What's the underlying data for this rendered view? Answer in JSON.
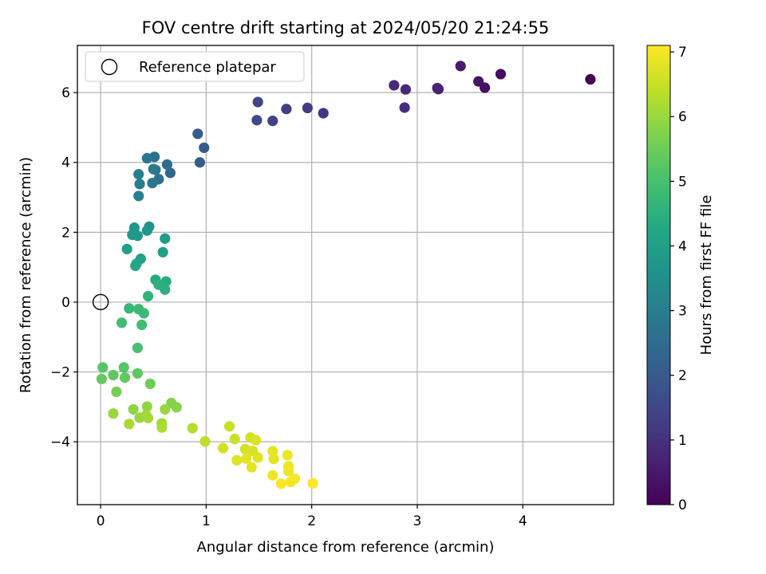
{
  "chart_data": {
    "type": "scatter",
    "title": "FOV centre drift starting at 2024/05/20 21:24:55",
    "xlabel": "Angular distance from reference (arcmin)",
    "ylabel": "Rotation from reference (arcmin)",
    "xlim": [
      -0.22,
      4.86
    ],
    "ylim": [
      -5.8,
      7.35
    ],
    "xticks": [
      0,
      1,
      2,
      3,
      4
    ],
    "yticks": [
      -4,
      -2,
      0,
      2,
      4,
      6
    ],
    "grid": true,
    "legend": {
      "placement": "top-left",
      "label": "Reference platepar"
    },
    "reference_point": {
      "x": 0,
      "y": 0
    },
    "colorbar": {
      "label": "Hours from first FF file",
      "range": [
        0,
        7.1
      ],
      "ticks": [
        0,
        1,
        2,
        3,
        4,
        5,
        6,
        7
      ],
      "colormap": "viridis"
    },
    "points": [
      {
        "x": 4.64,
        "y": 6.38,
        "c": 0.0
      },
      {
        "x": 3.79,
        "y": 6.53,
        "c": 0.2
      },
      {
        "x": 3.64,
        "y": 6.14,
        "c": 0.3
      },
      {
        "x": 3.58,
        "y": 6.32,
        "c": 0.35
      },
      {
        "x": 3.41,
        "y": 6.76,
        "c": 0.5
      },
      {
        "x": 3.2,
        "y": 6.1,
        "c": 0.6
      },
      {
        "x": 3.19,
        "y": 6.13,
        "c": 0.7
      },
      {
        "x": 2.89,
        "y": 6.09,
        "c": 0.8
      },
      {
        "x": 2.78,
        "y": 6.21,
        "c": 0.85
      },
      {
        "x": 2.88,
        "y": 5.57,
        "c": 0.9
      },
      {
        "x": 2.11,
        "y": 5.41,
        "c": 1.1
      },
      {
        "x": 1.96,
        "y": 5.56,
        "c": 1.2
      },
      {
        "x": 1.76,
        "y": 5.53,
        "c": 1.3
      },
      {
        "x": 1.63,
        "y": 5.19,
        "c": 1.4
      },
      {
        "x": 1.49,
        "y": 5.73,
        "c": 1.5
      },
      {
        "x": 1.48,
        "y": 5.21,
        "c": 1.6
      },
      {
        "x": 0.98,
        "y": 4.42,
        "c": 2.0
      },
      {
        "x": 0.92,
        "y": 4.82,
        "c": 2.05
      },
      {
        "x": 0.94,
        "y": 4.0,
        "c": 2.1
      },
      {
        "x": 0.66,
        "y": 3.7,
        "c": 2.4
      },
      {
        "x": 0.63,
        "y": 3.94,
        "c": 2.5
      },
      {
        "x": 0.55,
        "y": 3.52,
        "c": 2.6
      },
      {
        "x": 0.51,
        "y": 4.16,
        "c": 2.6
      },
      {
        "x": 0.52,
        "y": 3.79,
        "c": 2.7
      },
      {
        "x": 0.49,
        "y": 3.41,
        "c": 2.8
      },
      {
        "x": 0.44,
        "y": 4.12,
        "c": 2.8
      },
      {
        "x": 0.5,
        "y": 3.81,
        "c": 2.9
      },
      {
        "x": 0.37,
        "y": 3.38,
        "c": 3.0
      },
      {
        "x": 0.36,
        "y": 3.66,
        "c": 3.0
      },
      {
        "x": 0.36,
        "y": 3.04,
        "c": 3.1
      },
      {
        "x": 0.46,
        "y": 2.16,
        "c": 3.6
      },
      {
        "x": 0.44,
        "y": 2.05,
        "c": 3.7
      },
      {
        "x": 0.32,
        "y": 2.13,
        "c": 3.7
      },
      {
        "x": 0.3,
        "y": 1.93,
        "c": 3.8
      },
      {
        "x": 0.35,
        "y": 1.9,
        "c": 3.8
      },
      {
        "x": 0.61,
        "y": 1.82,
        "c": 3.9
      },
      {
        "x": 0.59,
        "y": 1.43,
        "c": 4.0
      },
      {
        "x": 0.25,
        "y": 1.52,
        "c": 4.0
      },
      {
        "x": 0.38,
        "y": 1.24,
        "c": 4.1
      },
      {
        "x": 0.34,
        "y": 1.1,
        "c": 4.2
      },
      {
        "x": 0.33,
        "y": 1.04,
        "c": 4.2
      },
      {
        "x": 0.52,
        "y": 0.64,
        "c": 4.3
      },
      {
        "x": 0.62,
        "y": 0.59,
        "c": 4.4
      },
      {
        "x": 0.55,
        "y": 0.5,
        "c": 4.5
      },
      {
        "x": 0.61,
        "y": 0.36,
        "c": 4.5
      },
      {
        "x": 0.45,
        "y": 0.17,
        "c": 4.6
      },
      {
        "x": 0.27,
        "y": -0.18,
        "c": 4.7
      },
      {
        "x": 0.36,
        "y": -0.2,
        "c": 4.8
      },
      {
        "x": 0.41,
        "y": -0.32,
        "c": 4.8
      },
      {
        "x": 0.2,
        "y": -0.59,
        "c": 4.9
      },
      {
        "x": 0.39,
        "y": -0.65,
        "c": 4.9
      },
      {
        "x": 0.35,
        "y": -1.31,
        "c": 5.0
      },
      {
        "x": 0.02,
        "y": -1.87,
        "c": 5.2
      },
      {
        "x": 0.22,
        "y": -1.87,
        "c": 5.2
      },
      {
        "x": 0.12,
        "y": -2.09,
        "c": 5.3
      },
      {
        "x": 0.35,
        "y": -2.04,
        "c": 5.3
      },
      {
        "x": 0.23,
        "y": -2.16,
        "c": 5.35
      },
      {
        "x": 0.01,
        "y": -2.2,
        "c": 5.4
      },
      {
        "x": 0.47,
        "y": -2.34,
        "c": 5.5
      },
      {
        "x": 0.15,
        "y": -2.57,
        "c": 5.6
      },
      {
        "x": 0.67,
        "y": -2.89,
        "c": 5.8
      },
      {
        "x": 0.72,
        "y": -3.01,
        "c": 5.8
      },
      {
        "x": 0.44,
        "y": -2.99,
        "c": 5.9
      },
      {
        "x": 0.31,
        "y": -3.07,
        "c": 5.9
      },
      {
        "x": 0.61,
        "y": -3.07,
        "c": 6.0
      },
      {
        "x": 0.12,
        "y": -3.19,
        "c": 6.0
      },
      {
        "x": 0.37,
        "y": -3.31,
        "c": 6.0
      },
      {
        "x": 0.45,
        "y": -3.32,
        "c": 6.1
      },
      {
        "x": 0.43,
        "y": -3.24,
        "c": 6.1
      },
      {
        "x": 0.58,
        "y": -3.47,
        "c": 6.1
      },
      {
        "x": 0.27,
        "y": -3.49,
        "c": 6.2
      },
      {
        "x": 0.58,
        "y": -3.59,
        "c": 6.2
      },
      {
        "x": 0.87,
        "y": -3.61,
        "c": 6.3
      },
      {
        "x": 0.99,
        "y": -3.99,
        "c": 6.4
      },
      {
        "x": 1.22,
        "y": -3.56,
        "c": 6.5
      },
      {
        "x": 1.27,
        "y": -3.92,
        "c": 6.55
      },
      {
        "x": 1.16,
        "y": -4.18,
        "c": 6.6
      },
      {
        "x": 1.42,
        "y": -3.88,
        "c": 6.6
      },
      {
        "x": 1.37,
        "y": -4.21,
        "c": 6.65
      },
      {
        "x": 1.47,
        "y": -3.95,
        "c": 6.7
      },
      {
        "x": 1.44,
        "y": -4.26,
        "c": 6.7
      },
      {
        "x": 1.49,
        "y": -4.45,
        "c": 6.75
      },
      {
        "x": 1.29,
        "y": -4.53,
        "c": 6.75
      },
      {
        "x": 1.38,
        "y": -4.48,
        "c": 6.8
      },
      {
        "x": 1.43,
        "y": -4.73,
        "c": 6.8
      },
      {
        "x": 1.63,
        "y": -4.27,
        "c": 6.85
      },
      {
        "x": 1.64,
        "y": -4.49,
        "c": 6.85
      },
      {
        "x": 1.77,
        "y": -4.38,
        "c": 6.9
      },
      {
        "x": 1.78,
        "y": -4.7,
        "c": 6.9
      },
      {
        "x": 1.78,
        "y": -4.84,
        "c": 6.95
      },
      {
        "x": 1.63,
        "y": -4.96,
        "c": 6.95
      },
      {
        "x": 1.84,
        "y": -5.06,
        "c": 7.0
      },
      {
        "x": 1.8,
        "y": -5.15,
        "c": 7.0
      },
      {
        "x": 1.71,
        "y": -5.2,
        "c": 7.05
      },
      {
        "x": 2.01,
        "y": -5.19,
        "c": 7.1
      }
    ]
  }
}
